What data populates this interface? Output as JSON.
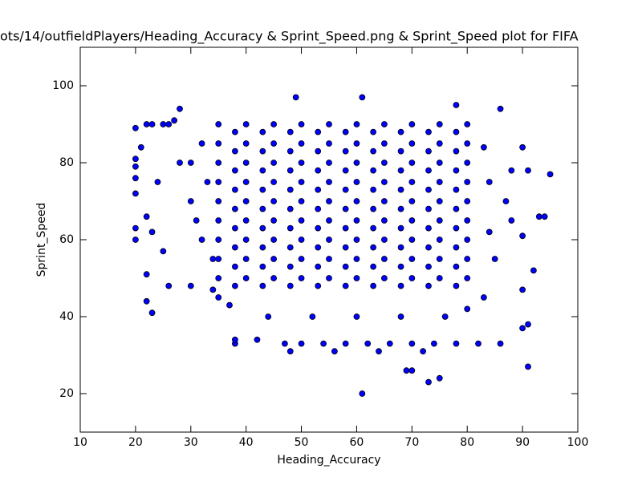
{
  "chart_data": {
    "type": "scatter",
    "title": "ots/14/outfieldPlayers/Heading_Accuracy & Sprint_Speed.png & Sprint_Speed plot for FIFA",
    "x_label": "Heading_Accuracy",
    "y_label": "Sprint_Speed",
    "color": "#0000ff",
    "xlim": [
      10,
      100
    ],
    "ylim": [
      10,
      110
    ],
    "xticks": [
      10,
      20,
      30,
      40,
      50,
      60,
      70,
      80,
      90,
      100
    ],
    "yticks": [
      20,
      40,
      60,
      80,
      100
    ],
    "x": [
      35,
      40,
      45,
      50,
      55,
      60,
      65,
      70,
      75,
      80,
      35,
      40,
      45,
      50,
      55,
      60,
      65,
      70,
      75,
      80,
      35,
      40,
      45,
      50,
      55,
      60,
      65,
      70,
      75,
      80,
      35,
      40,
      45,
      50,
      55,
      60,
      65,
      70,
      75,
      80,
      35,
      40,
      45,
      50,
      55,
      60,
      65,
      70,
      75,
      80,
      35,
      40,
      45,
      50,
      55,
      60,
      65,
      70,
      75,
      80,
      35,
      40,
      45,
      50,
      55,
      60,
      65,
      70,
      75,
      80,
      35,
      40,
      45,
      50,
      55,
      60,
      65,
      70,
      75,
      80,
      35,
      40,
      45,
      50,
      55,
      60,
      65,
      70,
      75,
      80,
      38,
      43,
      48,
      53,
      58,
      63,
      68,
      73,
      78,
      38,
      43,
      48,
      53,
      58,
      63,
      68,
      73,
      78,
      38,
      43,
      48,
      53,
      58,
      63,
      68,
      73,
      78,
      38,
      43,
      48,
      53,
      58,
      63,
      68,
      73,
      78,
      38,
      43,
      48,
      53,
      58,
      63,
      68,
      73,
      78,
      38,
      43,
      48,
      53,
      58,
      63,
      68,
      73,
      78,
      38,
      43,
      48,
      53,
      58,
      63,
      68,
      73,
      78,
      38,
      43,
      48,
      53,
      58,
      63,
      68,
      73,
      78,
      38,
      43,
      48,
      53,
      58,
      63,
      68,
      73,
      78,
      50,
      54,
      58,
      62,
      66,
      70,
      74,
      78,
      82,
      56,
      64,
      72,
      44,
      52,
      60,
      68,
      76,
      20,
      20,
      20,
      20,
      20,
      20,
      20,
      21,
      22,
      23,
      22,
      22,
      23,
      22,
      23,
      24,
      25,
      26,
      25,
      26,
      27,
      28,
      28,
      30,
      30,
      32,
      34,
      35,
      37,
      38,
      38,
      42,
      47,
      48,
      49,
      61,
      61,
      69,
      70,
      73,
      75,
      78,
      86,
      86,
      85,
      84,
      88,
      90,
      91,
      90,
      90,
      91,
      90,
      91,
      92,
      93,
      94,
      95,
      88,
      87,
      84,
      32,
      30,
      33,
      31,
      34,
      83,
      83,
      80
    ],
    "y": [
      50,
      50,
      50,
      50,
      50,
      50,
      50,
      50,
      50,
      50,
      55,
      55,
      55,
      55,
      55,
      55,
      55,
      55,
      55,
      55,
      60,
      60,
      60,
      60,
      60,
      60,
      60,
      60,
      60,
      60,
      65,
      65,
      65,
      65,
      65,
      65,
      65,
      65,
      65,
      65,
      70,
      70,
      70,
      70,
      70,
      70,
      70,
      70,
      70,
      70,
      75,
      75,
      75,
      75,
      75,
      75,
      75,
      75,
      75,
      75,
      80,
      80,
      80,
      80,
      80,
      80,
      80,
      80,
      80,
      80,
      85,
      85,
      85,
      85,
      85,
      85,
      85,
      85,
      85,
      85,
      90,
      90,
      90,
      90,
      90,
      90,
      90,
      90,
      90,
      90,
      48,
      48,
      48,
      48,
      48,
      48,
      48,
      48,
      48,
      53,
      53,
      53,
      53,
      53,
      53,
      53,
      53,
      53,
      58,
      58,
      58,
      58,
      58,
      58,
      58,
      58,
      58,
      63,
      63,
      63,
      63,
      63,
      63,
      63,
      63,
      63,
      68,
      68,
      68,
      68,
      68,
      68,
      68,
      68,
      68,
      73,
      73,
      73,
      73,
      73,
      73,
      73,
      73,
      73,
      78,
      78,
      78,
      78,
      78,
      78,
      78,
      78,
      78,
      83,
      83,
      83,
      83,
      83,
      83,
      83,
      83,
      83,
      88,
      88,
      88,
      88,
      88,
      88,
      88,
      88,
      88,
      33,
      33,
      33,
      33,
      33,
      33,
      33,
      33,
      33,
      31,
      31,
      31,
      40,
      40,
      40,
      40,
      40,
      89,
      81,
      79,
      76,
      72,
      63,
      60,
      84,
      90,
      90,
      51,
      44,
      41,
      66,
      62,
      75,
      57,
      48,
      90,
      90,
      91,
      94,
      80,
      48,
      70,
      60,
      47,
      45,
      43,
      33,
      34,
      34,
      33,
      31,
      97,
      97,
      20,
      26,
      26,
      23,
      24,
      95,
      94,
      33,
      55,
      75,
      78,
      84,
      78,
      61,
      47,
      38,
      37,
      27,
      52,
      66,
      66,
      77,
      65,
      70,
      62,
      85,
      80,
      75,
      65,
      55,
      84,
      45,
      42
    ]
  }
}
